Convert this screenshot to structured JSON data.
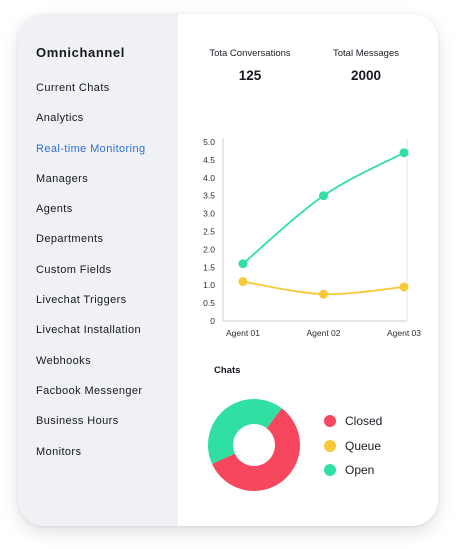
{
  "sidebar": {
    "title": "Omnichannel",
    "items": [
      {
        "label": "Current Chats",
        "active": false
      },
      {
        "label": "Analytics",
        "active": false
      },
      {
        "label": "Real-time Monitoring",
        "active": true
      },
      {
        "label": "Managers",
        "active": false
      },
      {
        "label": "Agents",
        "active": false
      },
      {
        "label": "Departments",
        "active": false
      },
      {
        "label": "Custom Fields",
        "active": false
      },
      {
        "label": "Livechat Triggers",
        "active": false
      },
      {
        "label": "Livechat Installation",
        "active": false
      },
      {
        "label": "Webhooks",
        "active": false
      },
      {
        "label": "Facbook Messenger",
        "active": false
      },
      {
        "label": "Business Hours",
        "active": false
      },
      {
        "label": "Monitors",
        "active": false
      }
    ]
  },
  "stats": [
    {
      "label": "Tota Conversations",
      "value": "125"
    },
    {
      "label": "Total Messages",
      "value": "2000"
    }
  ],
  "colors": {
    "active_nav": "#2f6fd6",
    "green": "#2fe0a2",
    "yellow": "#f7c938",
    "red": "#f6475e"
  },
  "chart_data": [
    {
      "type": "line",
      "categories": [
        "Agent 01",
        "Agent 02",
        "Agent 03"
      ],
      "ylim": [
        0,
        5
      ],
      "yticks": [
        "0",
        "0.5",
        "1.0",
        "1.5",
        "2.0",
        "2.5",
        "3.0",
        "3.5",
        "4.0",
        "4.5",
        "5.0"
      ],
      "grid": false,
      "series": [
        {
          "color": "#2fe0a2",
          "values": [
            1.6,
            3.5,
            4.7
          ]
        },
        {
          "color": "#f7c938",
          "values": [
            1.1,
            0.75,
            0.95
          ]
        }
      ]
    },
    {
      "type": "pie",
      "title": "Chats",
      "legend": [
        {
          "label": "Closed",
          "color": "#f6475e"
        },
        {
          "label": "Queue",
          "color": "#f7c938"
        },
        {
          "label": "Open",
          "color": "#2fe0a2"
        }
      ],
      "slices": [
        {
          "label": "Closed",
          "value": 58,
          "color": "#f6475e"
        },
        {
          "label": "Queue",
          "value": 0,
          "color": "#f7c938"
        },
        {
          "label": "Open",
          "value": 42,
          "color": "#2fe0a2"
        }
      ]
    }
  ]
}
